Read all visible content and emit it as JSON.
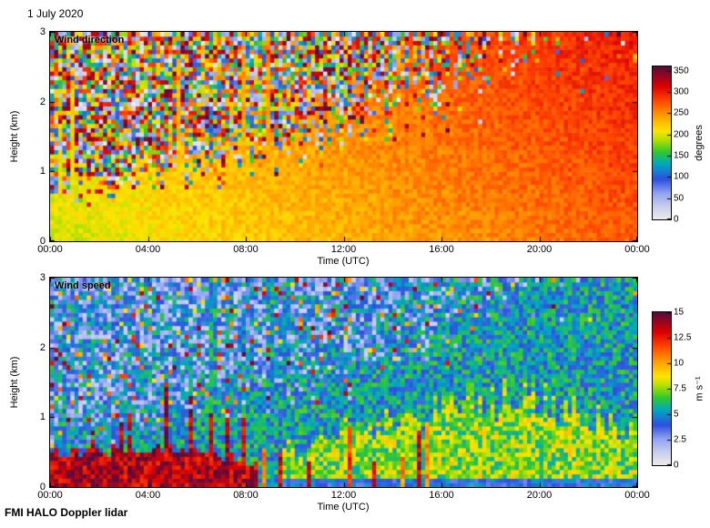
{
  "page": {
    "date_label": "1 July 2020",
    "footer": "FMI HALO Doppler lidar",
    "background": "#ffffff"
  },
  "seed": 1234567,
  "colormap_stops": [
    [
      0.0,
      "#ebebeb"
    ],
    [
      0.08,
      "#c9cfee"
    ],
    [
      0.17,
      "#8fa3f2"
    ],
    [
      0.26,
      "#2e4fe0"
    ],
    [
      0.36,
      "#00a8c0"
    ],
    [
      0.44,
      "#2fc82f"
    ],
    [
      0.52,
      "#b4e000"
    ],
    [
      0.58,
      "#ffe400"
    ],
    [
      0.68,
      "#ff9c00"
    ],
    [
      0.78,
      "#ff4400"
    ],
    [
      0.87,
      "#dc0000"
    ],
    [
      1.0,
      "#5a0a3c"
    ]
  ],
  "chart_data": [
    {
      "type": "heatmap",
      "panel": "wind-direction",
      "title": "Wind direction",
      "xlabel": "Time (UTC)",
      "ylabel": "Height (km)",
      "x_ticks": [
        "00:00",
        "04:00",
        "08:00",
        "12:00",
        "16:00",
        "20:00",
        "00:00"
      ],
      "x_range_hours": [
        0,
        24
      ],
      "y_ticks": [
        "0",
        "1",
        "2",
        "3"
      ],
      "y_range_km": [
        0,
        3
      ],
      "colorbar": {
        "label": "degrees",
        "ticks": [
          0,
          50,
          100,
          150,
          200,
          250,
          300,
          350
        ],
        "range": [
          0,
          360
        ]
      },
      "grid": {
        "cols": 144,
        "rows": 48
      },
      "summary": "Coherent southwesterly-to-westerly flow (about 180-280 degrees, yellow-orange-red) in a boundary layer that deepens from ~0.5 km at 00:00 to ~2.5 km after 20:00; random multicolour speckle (no signal) above.",
      "pattern": {
        "kind": "direction",
        "bl_keys": [
          [
            0,
            0.45
          ],
          [
            4,
            0.6
          ],
          [
            8,
            0.85
          ],
          [
            12,
            1.15
          ],
          [
            16,
            1.6
          ],
          [
            20,
            2.3
          ],
          [
            24,
            2.7
          ]
        ],
        "fade_keys": [
          [
            0,
            0.5
          ],
          [
            10,
            0.8
          ],
          [
            16,
            1.6
          ],
          [
            24,
            2.4
          ]
        ],
        "dir_base": 195,
        "dir_per_hour": 3.2,
        "dir_per_km": 10,
        "dir_noise": 15,
        "plume_prob": 0.07
      }
    },
    {
      "type": "heatmap",
      "panel": "wind-speed",
      "title": "Wind speed",
      "xlabel": "Time (UTC)",
      "ylabel": "Height (km)",
      "x_ticks": [
        "00:00",
        "04:00",
        "08:00",
        "12:00",
        "16:00",
        "20:00",
        "00:00"
      ],
      "x_range_hours": [
        0,
        24
      ],
      "y_ticks": [
        "0",
        "1",
        "2",
        "3"
      ],
      "y_range_km": [
        0,
        3
      ],
      "colorbar": {
        "label": "m s⁻¹",
        "ticks": [
          0,
          2.5,
          5,
          7.5,
          10,
          12.5,
          15
        ],
        "range": [
          0,
          15
        ]
      },
      "grid": {
        "cols": 144,
        "rows": 48
      },
      "summary": "Nocturnal low-level jet of 12-15 m/s (dark red/purple) below ~0.5 km from 00:00 to ~08:30 with occasional spikes to ~1.2 km; patchy 5-10 m/s (green-yellow) convective layer up to ~1.3 km in the afternoon/evening; mostly 1-6 m/s blue speckle noise above the signal.",
      "pattern": {
        "kind": "speed",
        "bl_keys": [
          [
            0,
            0.45
          ],
          [
            4,
            0.6
          ],
          [
            8,
            0.85
          ],
          [
            12,
            1.15
          ],
          [
            16,
            1.6
          ],
          [
            20,
            2.3
          ],
          [
            24,
            2.7
          ]
        ],
        "fade_keys": [
          [
            0,
            0.5
          ],
          [
            10,
            0.8
          ],
          [
            16,
            1.6
          ],
          [
            24,
            2.4
          ]
        ],
        "plume_prob": 0.07,
        "jet": {
          "end_hour": 8.5,
          "height_keys": [
            [
              0,
              0.45
            ],
            [
              3,
              0.5
            ],
            [
              6,
              0.55
            ],
            [
              8.5,
              0.3
            ]
          ],
          "speed": 13.6,
          "noise": 1.6,
          "spike_prob": 0.15
        },
        "stripes": {
          "start_hour": 8.5,
          "end_hour": 15.5,
          "prob": 0.3,
          "speed": 10.5
        },
        "conv": {
          "start_hour": 9.5,
          "top_keys": [
            [
              9.5,
              0.5
            ],
            [
              12,
              0.85
            ],
            [
              15,
              0.95
            ],
            [
              17,
              1.25
            ],
            [
              20,
              1.25
            ],
            [
              22,
              1.0
            ],
            [
              24,
              0.8
            ]
          ],
          "speed": 7.5,
          "noise": 2.0
        },
        "ambient": [
          3.5,
          7.0
        ],
        "noise_low": [
          1.0,
          6.5
        ],
        "noise_high_prob": 0.08,
        "noise_high": [
          8,
          15
        ]
      }
    }
  ],
  "layout_note": "Two stacked time-height heatmap panels sharing colorbars on the right."
}
